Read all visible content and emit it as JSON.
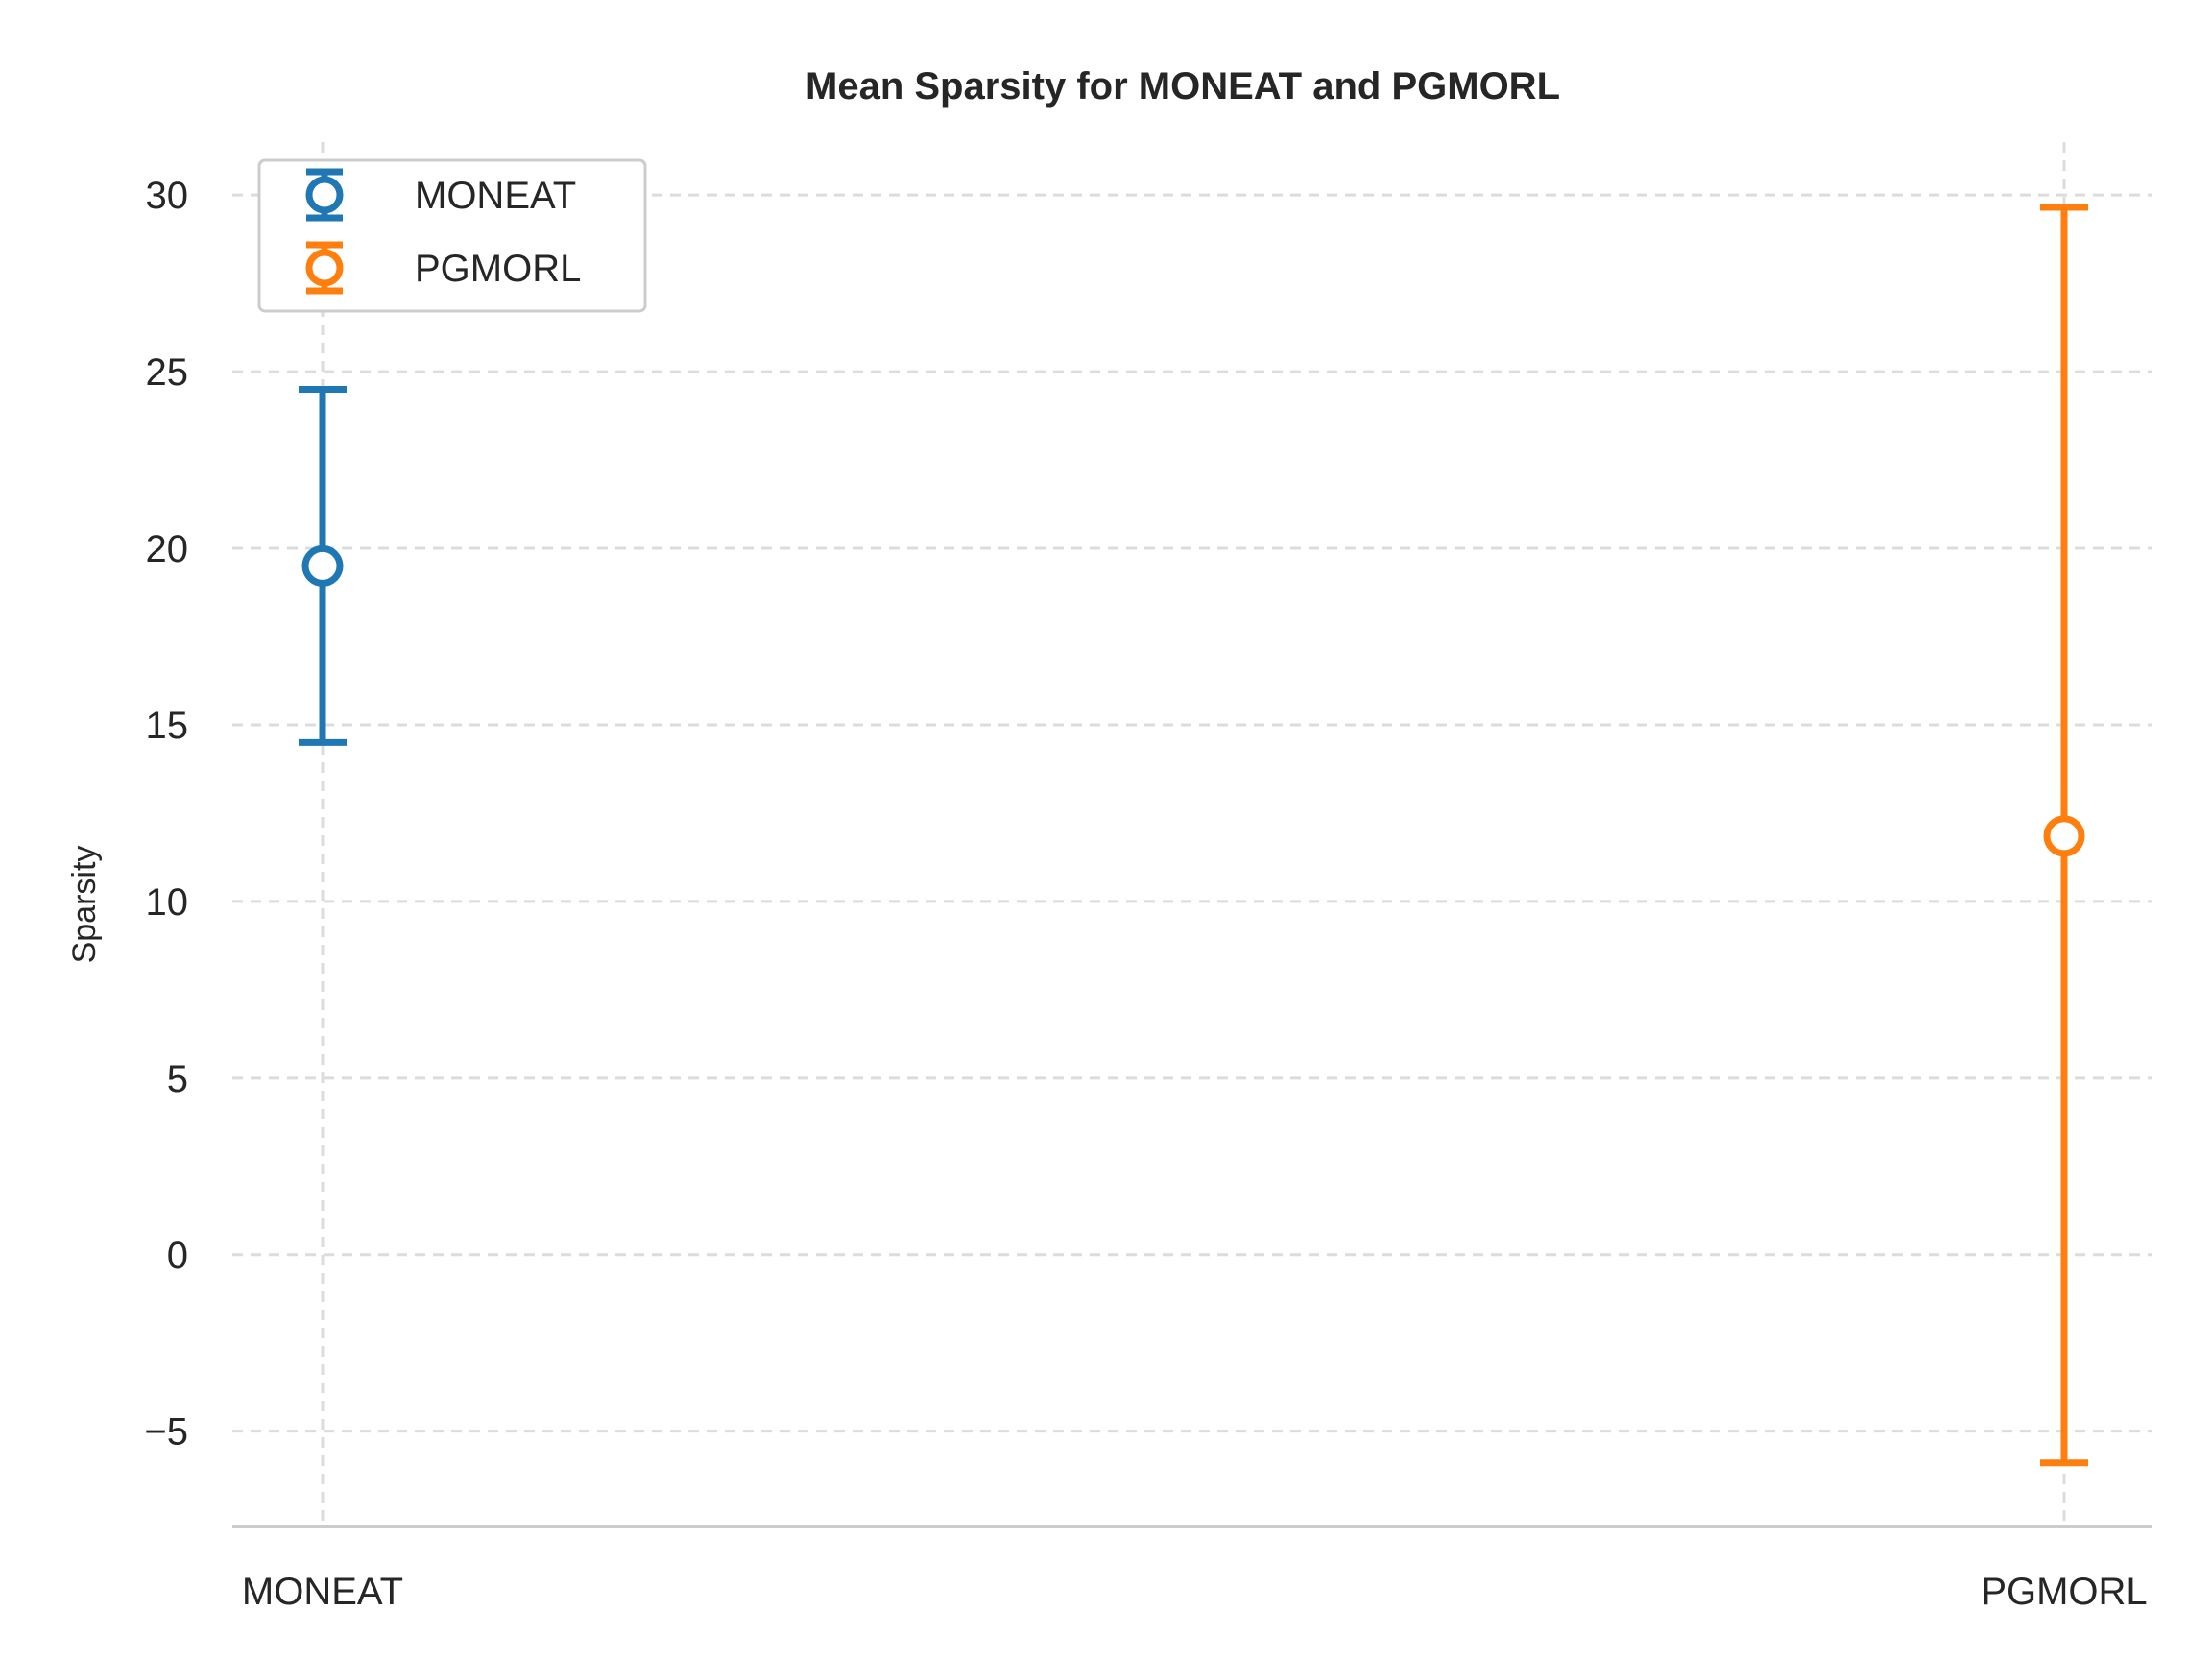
{
  "chart_data": {
    "type": "scatter",
    "title": "Mean Sparsity for MONEAT and PGMORL",
    "xlabel": "",
    "ylabel": "Sparsity",
    "categories": [
      "MONEAT",
      "PGMORL"
    ],
    "ylim": [
      -7.7,
      31.5
    ],
    "yticks": [
      -5,
      0,
      5,
      10,
      15,
      20,
      25,
      30
    ],
    "ytick_labels": [
      "−5",
      "0",
      "5",
      "10",
      "15",
      "20",
      "25",
      "30"
    ],
    "grid": true,
    "legend_position": "top-left",
    "series": [
      {
        "name": "MONEAT",
        "color": "#1f77b4",
        "category": "MONEAT",
        "mean": 19.5,
        "error_low": 14.5,
        "error_high": 24.5
      },
      {
        "name": "PGMORL",
        "color": "#ff7f0e",
        "category": "PGMORL",
        "mean": 11.85,
        "error_low": -5.9,
        "error_high": 29.65
      }
    ]
  }
}
